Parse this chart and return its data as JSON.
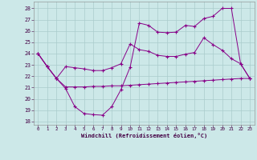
{
  "xlabel": "Windchill (Refroidissement éolien,°C)",
  "background_color": "#cce8e8",
  "grid_color": "#aacccc",
  "line_color": "#880088",
  "x_ticks": [
    0,
    1,
    2,
    3,
    4,
    5,
    6,
    7,
    8,
    9,
    10,
    11,
    12,
    13,
    14,
    15,
    16,
    17,
    18,
    19,
    20,
    21,
    22,
    23
  ],
  "y_ticks": [
    18,
    19,
    20,
    21,
    22,
    23,
    24,
    25,
    26,
    27,
    28
  ],
  "ylim": [
    17.7,
    28.6
  ],
  "xlim": [
    -0.5,
    23.5
  ],
  "series1_x": [
    0,
    1,
    2,
    3,
    4,
    5,
    6,
    7,
    8,
    9,
    10,
    11,
    12,
    13,
    14,
    15,
    16,
    17,
    18,
    19,
    20,
    21,
    22,
    23
  ],
  "series1_y": [
    24.0,
    22.85,
    21.8,
    20.9,
    19.3,
    18.7,
    18.6,
    18.55,
    19.3,
    20.8,
    22.8,
    26.7,
    26.5,
    25.9,
    25.85,
    25.9,
    26.5,
    26.4,
    27.1,
    27.3,
    28.0,
    28.0,
    23.1,
    21.8
  ],
  "series2_x": [
    0,
    1,
    2,
    3,
    4,
    5,
    6,
    7,
    8,
    9,
    10,
    11,
    12,
    13,
    14,
    15,
    16,
    17,
    18,
    19,
    20,
    21,
    22,
    23
  ],
  "series2_y": [
    24.0,
    22.85,
    21.8,
    22.85,
    22.75,
    22.65,
    22.5,
    22.5,
    22.75,
    23.1,
    24.85,
    24.35,
    24.2,
    23.85,
    23.75,
    23.75,
    23.95,
    24.1,
    25.4,
    24.8,
    24.3,
    23.55,
    23.1,
    21.8
  ],
  "series3_x": [
    0,
    1,
    2,
    3,
    4,
    5,
    6,
    7,
    8,
    9,
    10,
    11,
    12,
    13,
    14,
    15,
    16,
    17,
    18,
    19,
    20,
    21,
    22,
    23
  ],
  "series3_y": [
    24.0,
    22.85,
    21.8,
    21.05,
    21.05,
    21.05,
    21.1,
    21.1,
    21.15,
    21.15,
    21.2,
    21.25,
    21.3,
    21.35,
    21.4,
    21.45,
    21.5,
    21.55,
    21.6,
    21.65,
    21.7,
    21.75,
    21.8,
    21.8
  ]
}
